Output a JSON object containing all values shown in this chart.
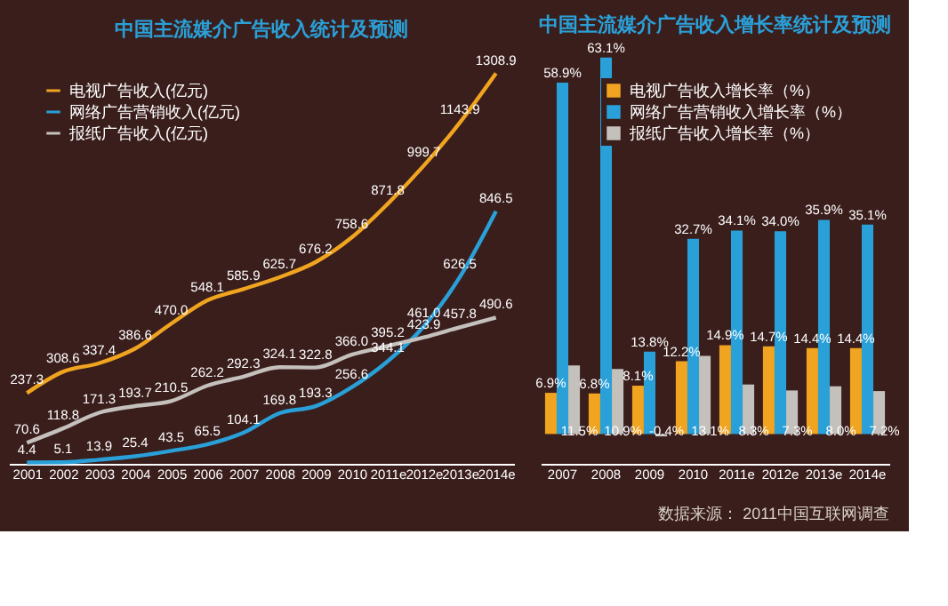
{
  "chart_data": [
    {
      "type": "line",
      "title": "中国主流媒介广告收入统计及预测",
      "categories": [
        "2001",
        "2002",
        "2003",
        "2004",
        "2005",
        "2006",
        "2007",
        "2008",
        "2009",
        "2010",
        "2011e",
        "2012e",
        "2013e",
        "2014e"
      ],
      "series": [
        {
          "name": "电视广告收入(亿元)",
          "color": "#f0a420",
          "values": [
            237.3,
            308.6,
            337.4,
            386.6,
            470.0,
            548.1,
            585.9,
            625.7,
            676.2,
            758.6,
            871.8,
            999.7,
            1143.9,
            1308.9
          ],
          "value_labels": [
            "237.3",
            "308.6",
            "337.4",
            "386.6",
            "470.0",
            "548.1",
            "585.9",
            "625.7",
            "676.2",
            "758.6",
            "871.8",
            "999.7",
            "1143.9",
            "1308.9"
          ]
        },
        {
          "name": "网络广告营销收入(亿元)",
          "color": "#2aa0d8",
          "values": [
            4.4,
            5.1,
            13.9,
            25.4,
            43.5,
            65.5,
            104.1,
            169.8,
            193.3,
            256.6,
            344.1,
            461.0,
            626.5,
            846.5
          ],
          "value_labels": [
            "4.4",
            "5.1",
            "13.9",
            "25.4",
            "43.5",
            "65.5",
            "104.1",
            "169.8",
            "193.3",
            "256.6",
            "344.1",
            "461.0",
            "626.5",
            "846.5"
          ]
        },
        {
          "name": "报纸广告收入(亿元)",
          "color": "#c4c0bc",
          "values": [
            70.6,
            118.8,
            171.3,
            193.7,
            210.5,
            262.2,
            292.3,
            324.1,
            322.8,
            366.0,
            395.2,
            423.9,
            457.8,
            490.6
          ],
          "value_labels": [
            "70.6",
            "118.8",
            "171.3",
            "193.7",
            "210.5",
            "262.2",
            "292.3",
            "324.1",
            "322.8",
            "366.0",
            "395.2",
            "423.9",
            "457.8",
            "490.6"
          ]
        }
      ],
      "legend": "top left",
      "tick_labels": "x",
      "grid": false
    },
    {
      "type": "bar",
      "title": "中国主流媒介广告收入增长率统计及预测",
      "categories": [
        "2007",
        "2008",
        "2009",
        "2010",
        "2011e",
        "2012e",
        "2013e",
        "2014e"
      ],
      "series": [
        {
          "name": "电视广告收入增长率（%）",
          "color": "#f0a420",
          "values": [
            6.9,
            6.8,
            8.1,
            12.2,
            14.9,
            14.7,
            14.4,
            14.4
          ],
          "value_labels": [
            "6.9%",
            "6.8%",
            "8.1%",
            "12.2%",
            "14.9%",
            "14.7%",
            "14.4%",
            "14.4%"
          ]
        },
        {
          "name": "网络广告营销收入增长率（%）",
          "color": "#2aa0d8",
          "values": [
            58.9,
            63.1,
            13.8,
            32.7,
            34.1,
            34.0,
            35.9,
            35.1
          ],
          "value_labels": [
            "58.9%",
            "63.1%",
            "13.8%",
            "32.7%",
            "34.1%",
            "34.0%",
            "35.9%",
            "35.1%"
          ]
        },
        {
          "name": "报纸广告收入增长率（%）",
          "color": "#c4c0bc",
          "values": [
            11.5,
            10.9,
            -0.4,
            13.1,
            8.3,
            7.3,
            8.0,
            7.2
          ],
          "value_labels": [
            "11.5%",
            "10.9%",
            "-0.4%",
            "13.1%",
            "8.3%",
            "7.3%",
            "8.0%",
            "7.2%"
          ]
        }
      ],
      "legend": "top right",
      "tick_labels": "x",
      "grid": false,
      "annotations": [
        "数据来源： 2011中国互联网调查"
      ]
    }
  ]
}
